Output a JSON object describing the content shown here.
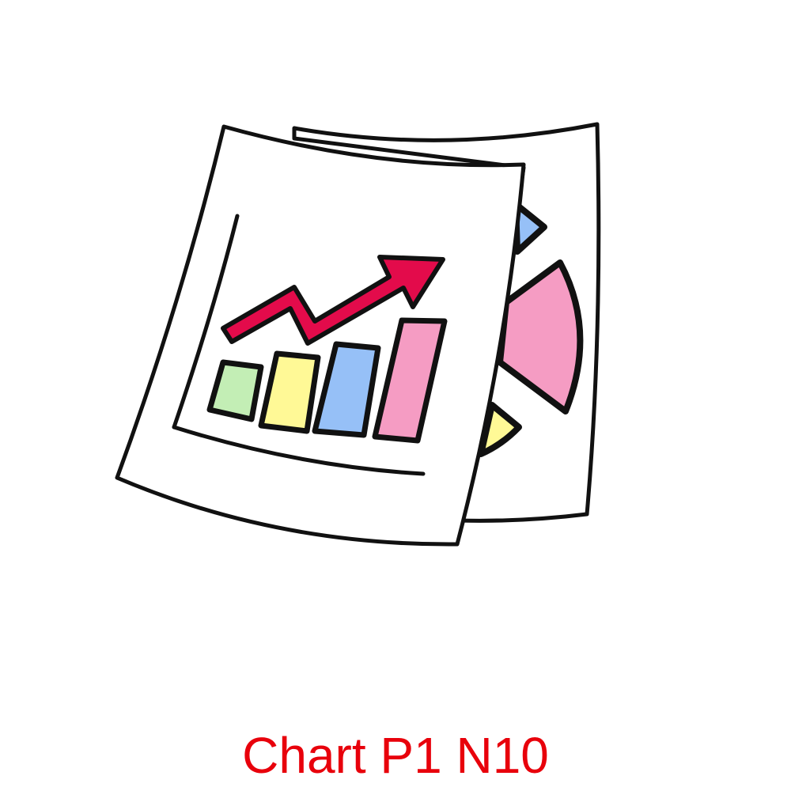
{
  "caption": "Chart P1 N10",
  "colors": {
    "caption": "#e8000b",
    "outline": "#111111",
    "paper": "#ffffff",
    "arrow": "#e30b4b",
    "bar_green": "#c3eeb5",
    "bar_yellow": "#fff996",
    "bar_blue": "#96c0f7",
    "bar_pink": "#f59cc3",
    "pie_blue": "#96c0f7",
    "pie_pink": "#f59cc3",
    "pie_yellow": "#fff996"
  },
  "icons": {
    "main": "charts-documents-icon",
    "back_sheet": "pie-chart-document-icon",
    "front_sheet": "bar-chart-document-icon",
    "trend": "trend-arrow-icon"
  }
}
